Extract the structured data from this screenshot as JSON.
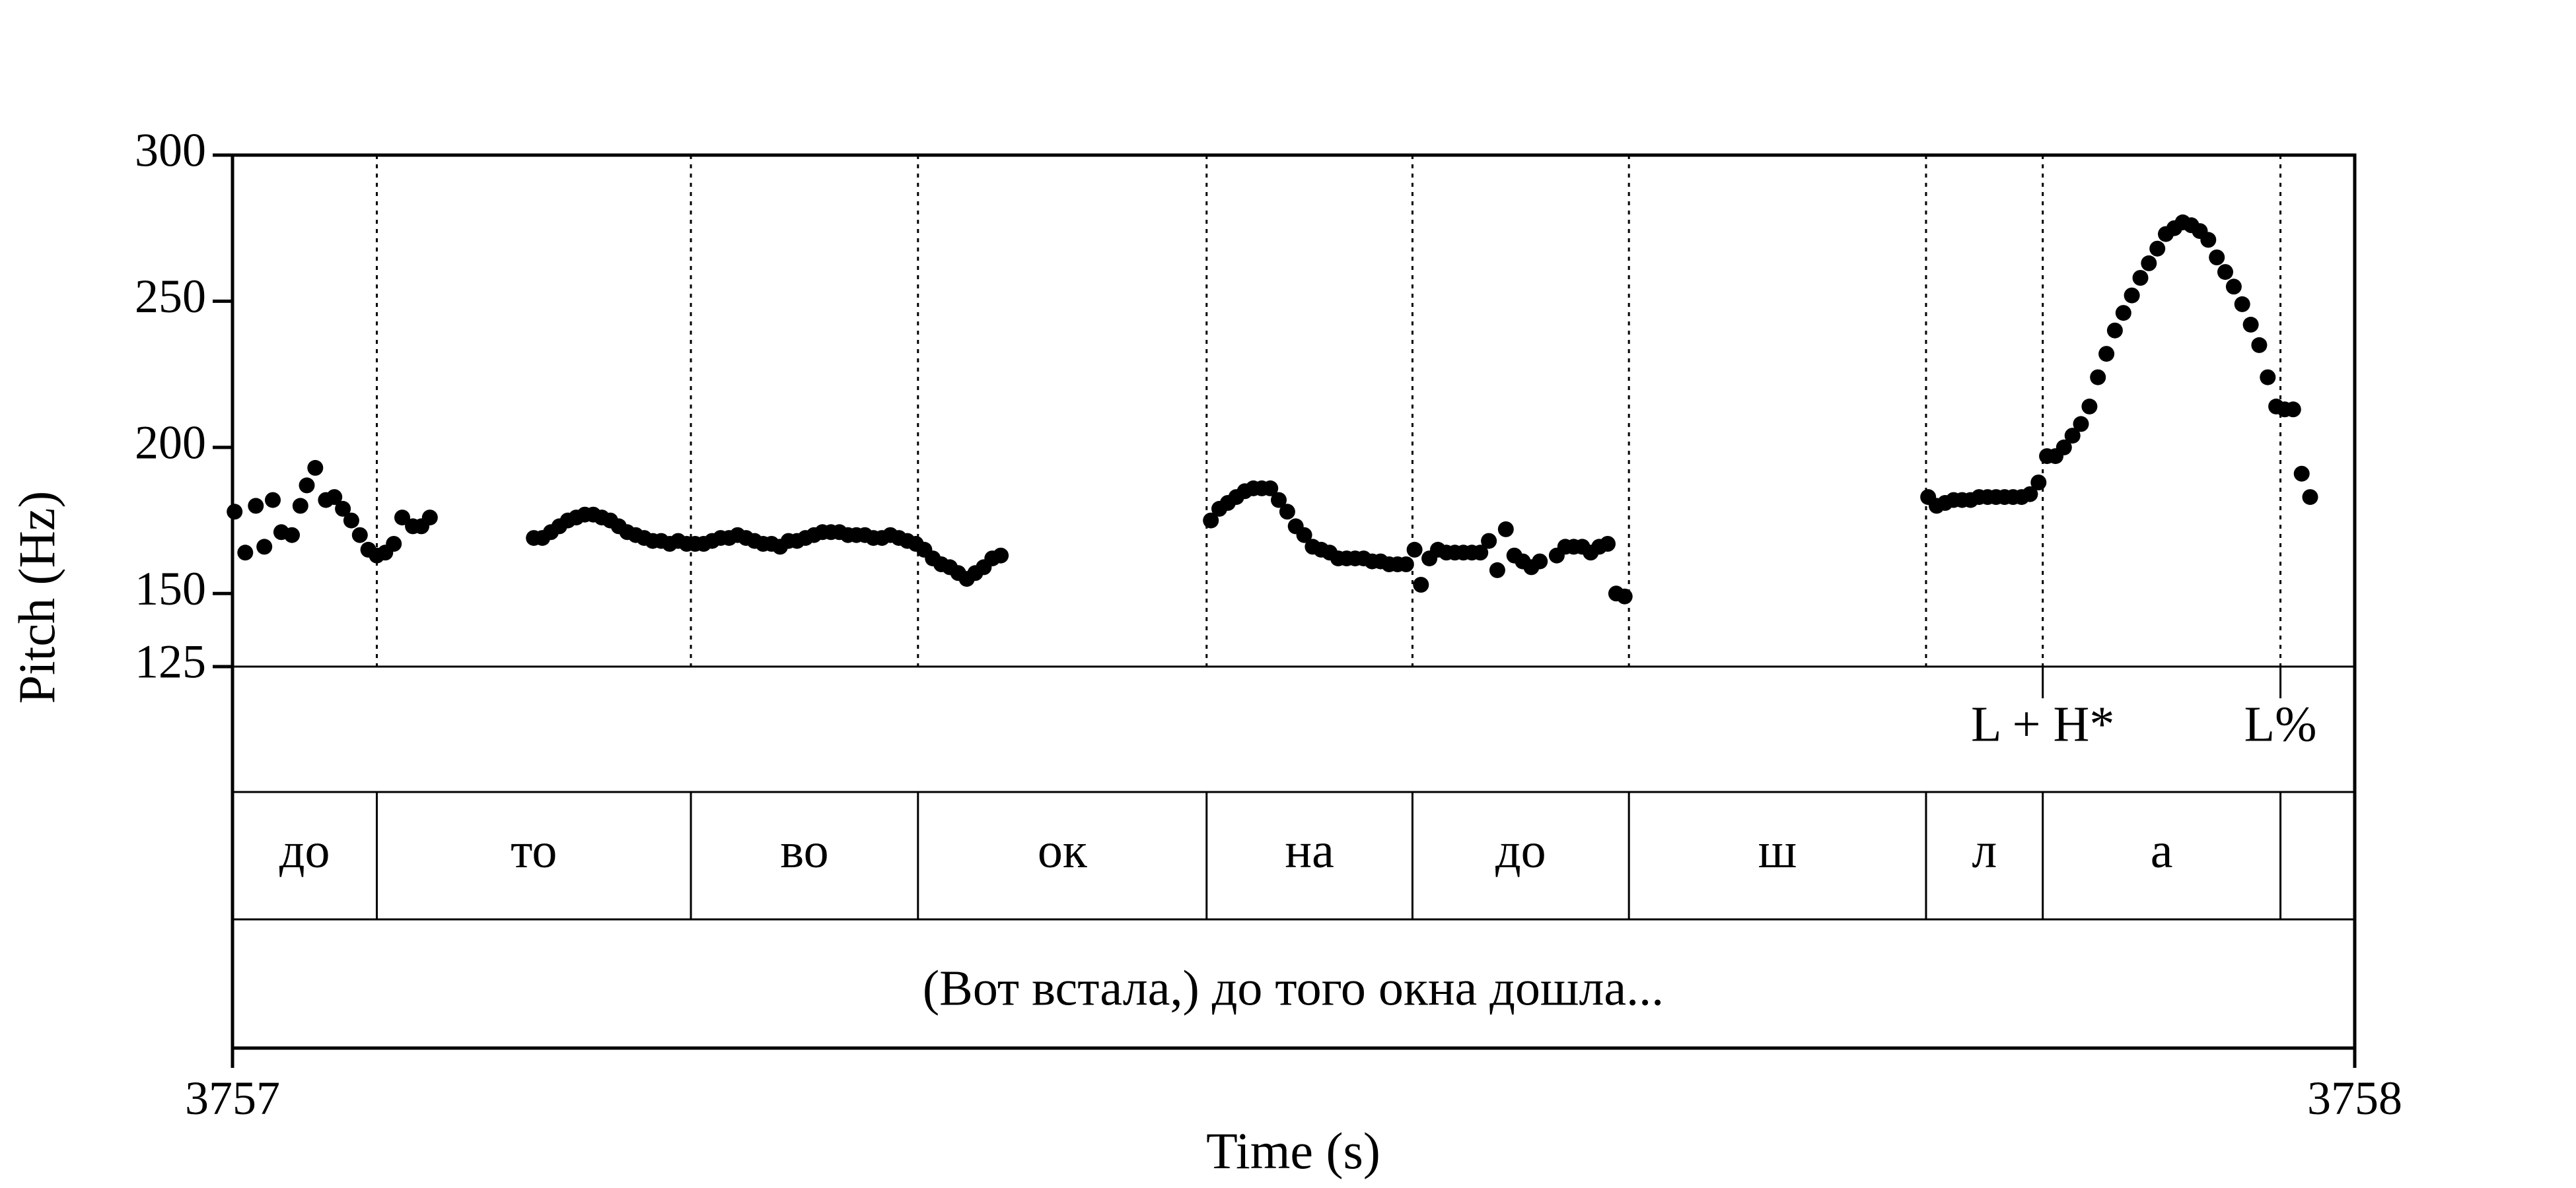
{
  "chart_data": {
    "type": "scatter",
    "title": "",
    "xlabel": "Time (s)",
    "ylabel": "Pitch (Hz)",
    "xlim": [
      3757,
      3758
    ],
    "ylim": [
      125,
      300
    ],
    "x_ticks": [
      "3757",
      "3758"
    ],
    "y_ticks": [
      {
        "value": 300,
        "label": "300"
      },
      {
        "value": 250,
        "label": "250"
      },
      {
        "value": 200,
        "label": "200"
      },
      {
        "value": 150,
        "label": "150"
      },
      {
        "value": 125,
        "label": "125"
      }
    ],
    "boundaries": [
      3757.068,
      3757.216,
      3757.323,
      3757.459,
      3757.556,
      3757.658,
      3757.798,
      3757.853,
      3757.965
    ],
    "tones": [
      {
        "time": 3757.853,
        "label": "L + H*"
      },
      {
        "time": 3757.965,
        "label": "L%"
      }
    ],
    "syllables": [
      {
        "start": 3757.0,
        "end": 3757.068,
        "label": "до"
      },
      {
        "start": 3757.068,
        "end": 3757.216,
        "label": "то"
      },
      {
        "start": 3757.216,
        "end": 3757.323,
        "label": "во"
      },
      {
        "start": 3757.323,
        "end": 3757.459,
        "label": "ок"
      },
      {
        "start": 3757.459,
        "end": 3757.556,
        "label": "на"
      },
      {
        "start": 3757.556,
        "end": 3757.658,
        "label": "до"
      },
      {
        "start": 3757.658,
        "end": 3757.798,
        "label": "ш"
      },
      {
        "start": 3757.798,
        "end": 3757.853,
        "label": "л"
      },
      {
        "start": 3757.853,
        "end": 3757.965,
        "label": "а"
      },
      {
        "start": 3757.965,
        "end": 3758.0,
        "label": ""
      }
    ],
    "sentence": "(Вот встала,) до того окна дошла...",
    "series": [
      {
        "points": [
          [
            3757.001,
            178
          ],
          [
            3757.006,
            164
          ],
          [
            3757.011,
            180
          ],
          [
            3757.015,
            166
          ],
          [
            3757.019,
            182
          ],
          [
            3757.023,
            171
          ],
          [
            3757.028,
            170
          ],
          [
            3757.032,
            180
          ],
          [
            3757.035,
            187
          ],
          [
            3757.039,
            193
          ],
          [
            3757.044,
            182
          ],
          [
            3757.048,
            183
          ],
          [
            3757.052,
            179
          ],
          [
            3757.056,
            175
          ],
          [
            3757.06,
            170
          ],
          [
            3757.064,
            165
          ],
          [
            3757.068,
            163
          ],
          [
            3757.072,
            164
          ],
          [
            3757.076,
            167
          ],
          [
            3757.08,
            176
          ],
          [
            3757.085,
            173
          ],
          [
            3757.089,
            173
          ],
          [
            3757.093,
            176
          ],
          [
            3757.142,
            169
          ],
          [
            3757.146,
            169
          ],
          [
            3757.15,
            171
          ],
          [
            3757.154,
            173
          ],
          [
            3757.158,
            175
          ],
          [
            3757.162,
            176
          ],
          [
            3757.166,
            177
          ],
          [
            3757.17,
            177
          ],
          [
            3757.174,
            176
          ],
          [
            3757.178,
            175
          ],
          [
            3757.182,
            173
          ],
          [
            3757.186,
            171
          ],
          [
            3757.19,
            170
          ],
          [
            3757.194,
            169
          ],
          [
            3757.198,
            168
          ],
          [
            3757.202,
            168
          ],
          [
            3757.206,
            167
          ],
          [
            3757.21,
            168
          ],
          [
            3757.214,
            167
          ],
          [
            3757.218,
            167
          ],
          [
            3757.222,
            167
          ],
          [
            3757.226,
            168
          ],
          [
            3757.23,
            169
          ],
          [
            3757.234,
            169
          ],
          [
            3757.238,
            170
          ],
          [
            3757.242,
            169
          ],
          [
            3757.246,
            168
          ],
          [
            3757.25,
            167
          ],
          [
            3757.254,
            167
          ],
          [
            3757.258,
            166
          ],
          [
            3757.262,
            168
          ],
          [
            3757.266,
            168
          ],
          [
            3757.27,
            169
          ],
          [
            3757.274,
            170
          ],
          [
            3757.278,
            171
          ],
          [
            3757.282,
            171
          ],
          [
            3757.286,
            171
          ],
          [
            3757.29,
            170
          ],
          [
            3757.294,
            170
          ],
          [
            3757.298,
            170
          ],
          [
            3757.302,
            169
          ],
          [
            3757.306,
            169
          ],
          [
            3757.31,
            170
          ],
          [
            3757.314,
            169
          ],
          [
            3757.318,
            168
          ],
          [
            3757.322,
            167
          ],
          [
            3757.326,
            165
          ],
          [
            3757.33,
            162
          ],
          [
            3757.334,
            160
          ],
          [
            3757.338,
            159
          ],
          [
            3757.342,
            157
          ],
          [
            3757.346,
            155
          ],
          [
            3757.35,
            157
          ],
          [
            3757.354,
            159
          ],
          [
            3757.358,
            162
          ],
          [
            3757.362,
            163
          ],
          [
            3757.461,
            175
          ],
          [
            3757.465,
            179
          ],
          [
            3757.469,
            181
          ],
          [
            3757.473,
            183
          ],
          [
            3757.477,
            185
          ],
          [
            3757.481,
            186
          ],
          [
            3757.485,
            186
          ],
          [
            3757.489,
            186
          ],
          [
            3757.493,
            182
          ],
          [
            3757.497,
            178
          ],
          [
            3757.501,
            173
          ],
          [
            3757.505,
            170
          ],
          [
            3757.509,
            166
          ],
          [
            3757.513,
            165
          ],
          [
            3757.517,
            164
          ],
          [
            3757.521,
            162
          ],
          [
            3757.525,
            162
          ],
          [
            3757.529,
            162
          ],
          [
            3757.533,
            162
          ],
          [
            3757.537,
            161
          ],
          [
            3757.541,
            161
          ],
          [
            3757.545,
            160
          ],
          [
            3757.549,
            160
          ],
          [
            3757.553,
            160
          ],
          [
            3757.557,
            165
          ],
          [
            3757.56,
            153
          ],
          [
            3757.564,
            162
          ],
          [
            3757.568,
            165
          ],
          [
            3757.572,
            164
          ],
          [
            3757.576,
            164
          ],
          [
            3757.58,
            164
          ],
          [
            3757.584,
            164
          ],
          [
            3757.588,
            164
          ],
          [
            3757.592,
            168
          ],
          [
            3757.596,
            158
          ],
          [
            3757.6,
            172
          ],
          [
            3757.604,
            163
          ],
          [
            3757.608,
            161
          ],
          [
            3757.612,
            159
          ],
          [
            3757.616,
            161
          ],
          [
            3757.624,
            163
          ],
          [
            3757.628,
            166
          ],
          [
            3757.632,
            166
          ],
          [
            3757.636,
            166
          ],
          [
            3757.64,
            164
          ],
          [
            3757.644,
            166
          ],
          [
            3757.648,
            167
          ],
          [
            3757.652,
            150
          ],
          [
            3757.656,
            149
          ],
          [
            3757.799,
            183
          ],
          [
            3757.803,
            180
          ],
          [
            3757.807,
            181
          ],
          [
            3757.811,
            182
          ],
          [
            3757.815,
            182
          ],
          [
            3757.819,
            182
          ],
          [
            3757.823,
            183
          ],
          [
            3757.827,
            183
          ],
          [
            3757.831,
            183
          ],
          [
            3757.835,
            183
          ],
          [
            3757.839,
            183
          ],
          [
            3757.843,
            183
          ],
          [
            3757.847,
            184
          ],
          [
            3757.851,
            188
          ],
          [
            3757.855,
            197
          ],
          [
            3757.859,
            197
          ],
          [
            3757.863,
            200
          ],
          [
            3757.867,
            204
          ],
          [
            3757.871,
            208
          ],
          [
            3757.875,
            214
          ],
          [
            3757.879,
            224
          ],
          [
            3757.883,
            232
          ],
          [
            3757.887,
            240
          ],
          [
            3757.891,
            246
          ],
          [
            3757.895,
            252
          ],
          [
            3757.899,
            258
          ],
          [
            3757.903,
            263
          ],
          [
            3757.907,
            268
          ],
          [
            3757.911,
            273
          ],
          [
            3757.915,
            275
          ],
          [
            3757.919,
            277
          ],
          [
            3757.923,
            276
          ],
          [
            3757.927,
            274
          ],
          [
            3757.931,
            271
          ],
          [
            3757.935,
            265
          ],
          [
            3757.939,
            260
          ],
          [
            3757.943,
            255
          ],
          [
            3757.947,
            249
          ],
          [
            3757.951,
            242
          ],
          [
            3757.955,
            235
          ],
          [
            3757.959,
            224
          ],
          [
            3757.963,
            214
          ],
          [
            3757.967,
            213
          ],
          [
            3757.971,
            213
          ],
          [
            3757.975,
            191
          ],
          [
            3757.979,
            183
          ]
        ]
      }
    ]
  }
}
